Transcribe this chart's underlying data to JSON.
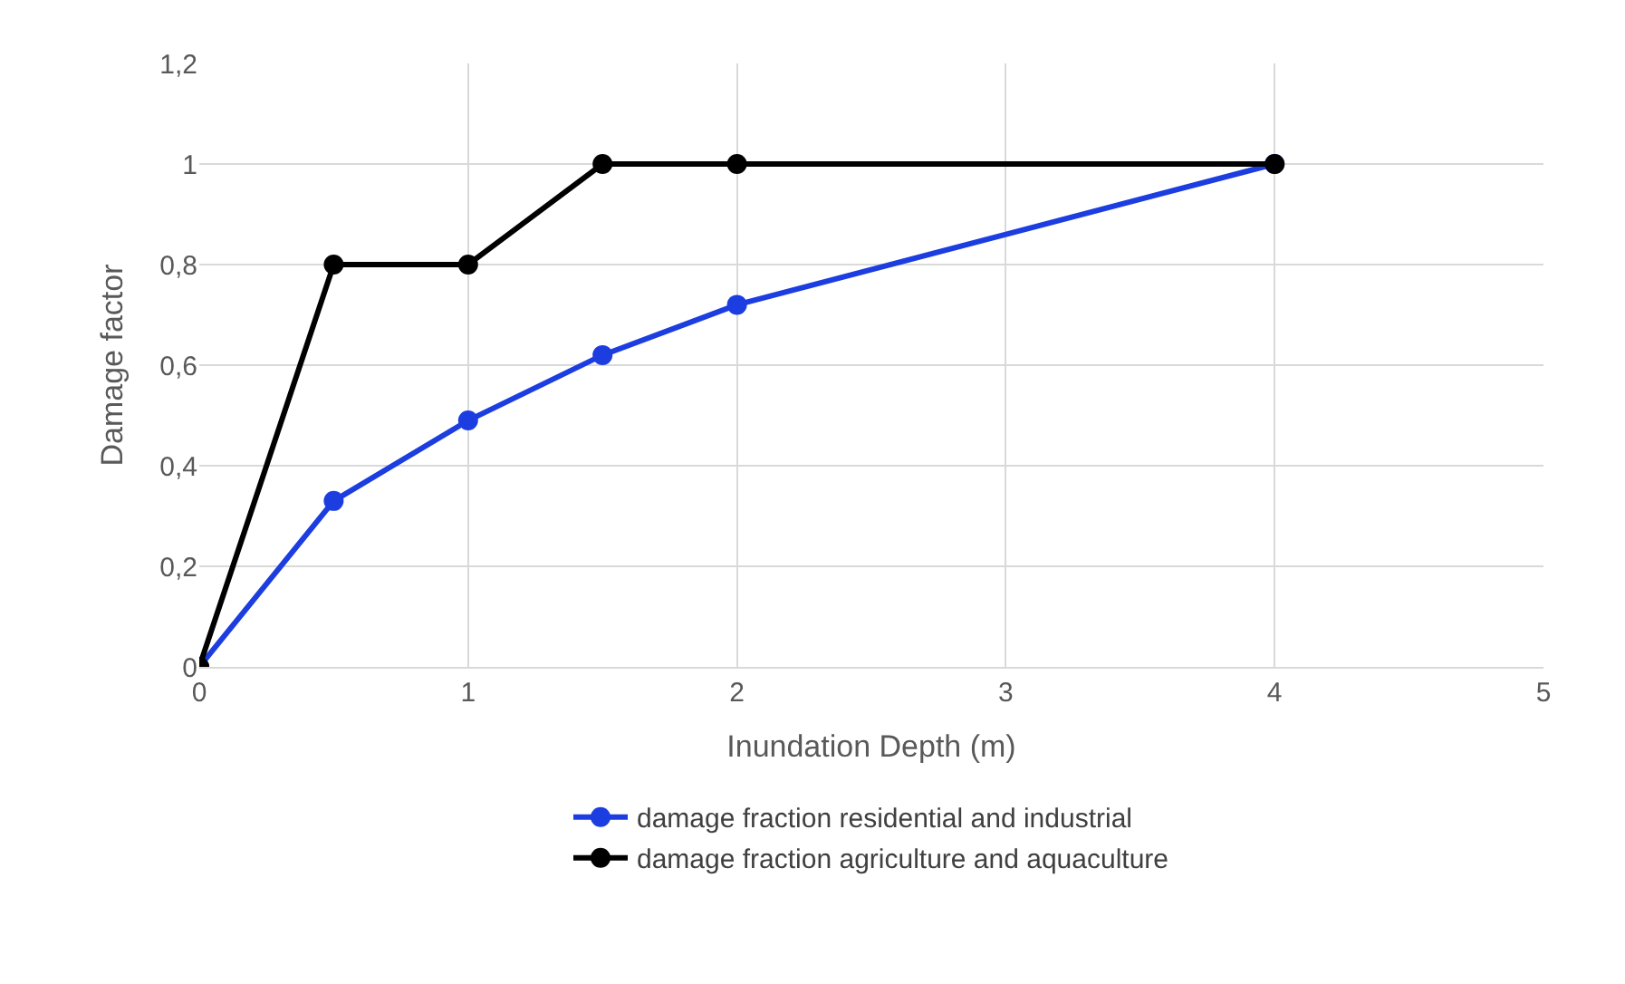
{
  "chart_data": {
    "type": "line",
    "xlabel": "Inundation Depth (m)",
    "ylabel": "Damage factor",
    "x": [
      0,
      0.5,
      1,
      1.5,
      2,
      4
    ],
    "series": [
      {
        "name": "damage fraction residential and industrial",
        "color": "#1c3de0",
        "values": [
          0,
          0.33,
          0.49,
          0.62,
          0.72,
          1
        ]
      },
      {
        "name": "damage fraction agriculture and aquaculture",
        "color": "#000000",
        "values": [
          0,
          0.8,
          0.8,
          1,
          1,
          1
        ]
      }
    ],
    "xlim": [
      0,
      5
    ],
    "xticks": [
      0,
      1,
      2,
      3,
      4,
      5
    ],
    "ylim": [
      0,
      1.2
    ],
    "yticks": [
      0,
      {
        "value": 0.2,
        "label": "0,2"
      },
      {
        "value": 0.4,
        "label": "0,4"
      },
      {
        "value": 0.6,
        "label": "0,6"
      },
      {
        "value": 0.8,
        "label": "0,8"
      },
      1,
      {
        "value": 1.2,
        "label": "1,2"
      }
    ],
    "grid": true,
    "legend": "bottom",
    "marker": "circle",
    "line_style": "solid"
  }
}
